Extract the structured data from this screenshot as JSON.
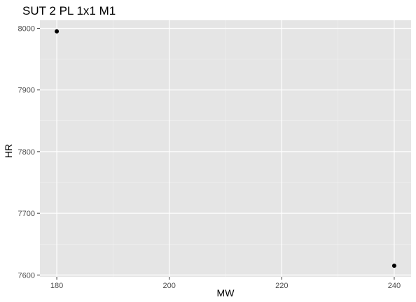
{
  "chart_data": {
    "type": "scatter",
    "title": "SUT 2 PL 1x1 M1",
    "xlabel": "MW",
    "ylabel": "HR",
    "xlim": [
      177,
      243
    ],
    "ylim": [
      7597,
      8013
    ],
    "x_ticks": [
      180,
      200,
      220,
      240
    ],
    "x_tick_labels": [
      "180",
      "200",
      "220",
      "240"
    ],
    "x_minor_ticks": [
      190,
      210,
      230
    ],
    "y_ticks": [
      7600,
      7700,
      7800,
      7900,
      8000
    ],
    "y_tick_labels": [
      "7600",
      "7700",
      "7800",
      "7900",
      "8000"
    ],
    "y_minor_ticks": [
      7650,
      7750,
      7850,
      7950
    ],
    "grid": true,
    "legend": "none",
    "points": [
      {
        "x": 180,
        "y": 7995
      },
      {
        "x": 240,
        "y": 7615
      }
    ],
    "colors": {
      "panel": "#e5e5e5",
      "grid_major": "#ffffff",
      "point": "#000000",
      "tick": "#333333"
    }
  }
}
